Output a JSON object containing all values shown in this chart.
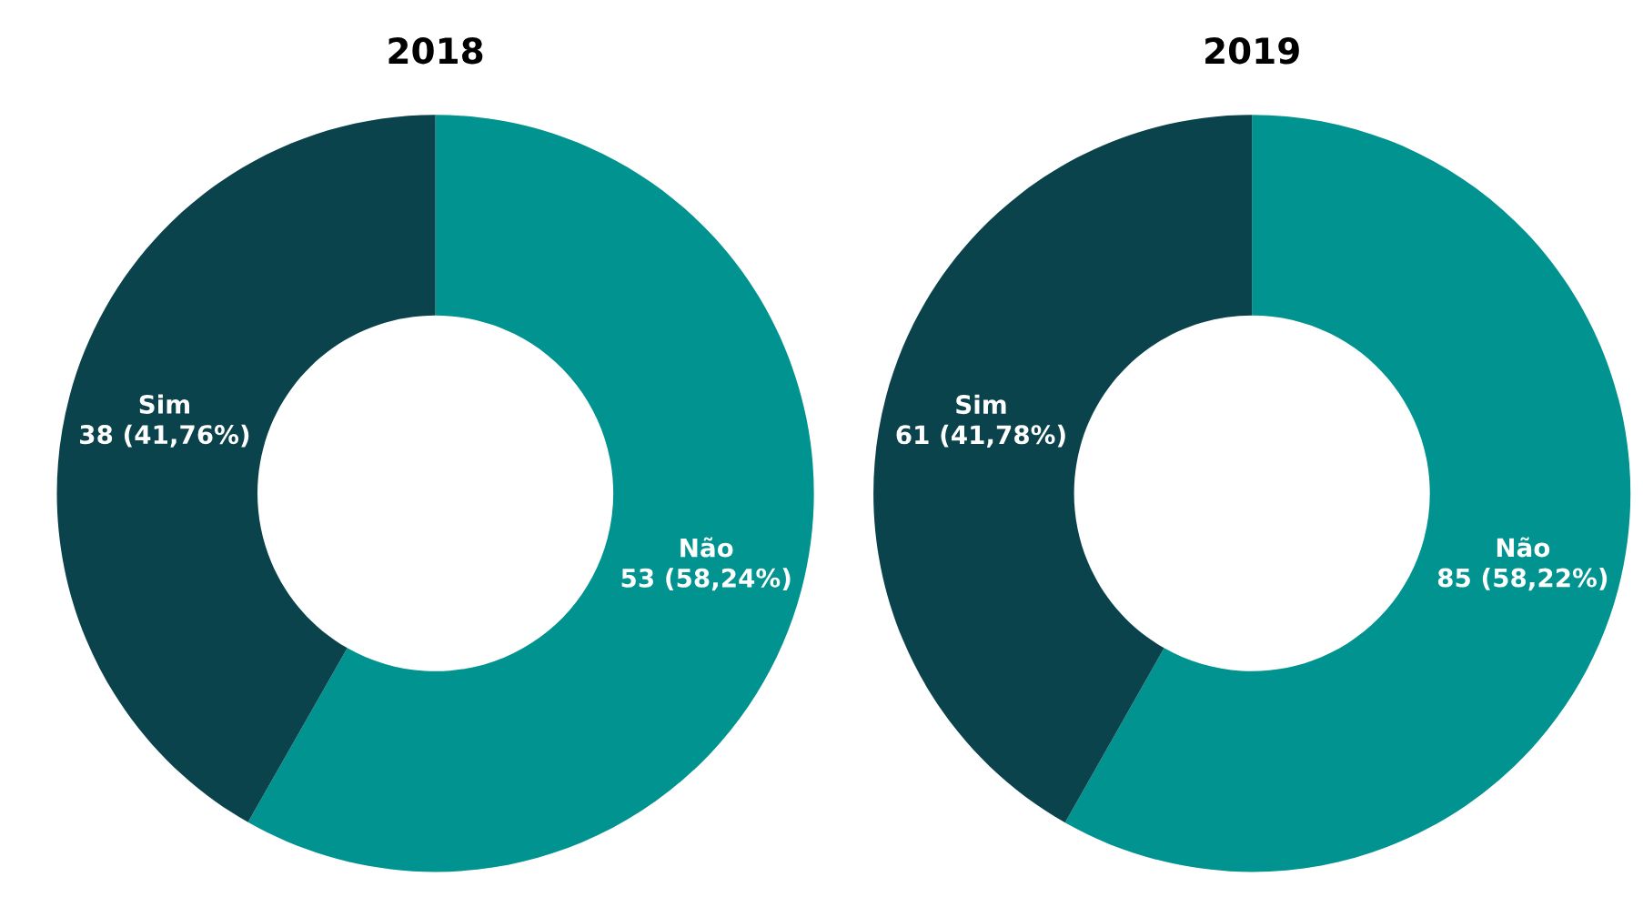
{
  "chart_data": [
    {
      "type": "donut",
      "title": "2018",
      "categories": [
        "Não",
        "Sim"
      ],
      "values": [
        53,
        38
      ],
      "colors": [
        "#00938f",
        "#0a434c"
      ],
      "value_labels": [
        "53 (58,24%)",
        "38 (41,76%)"
      ]
    },
    {
      "type": "donut",
      "title": "2019",
      "categories": [
        "Não",
        "Sim"
      ],
      "values": [
        85,
        61
      ],
      "colors": [
        "#00938f",
        "#0a434c"
      ],
      "value_labels": [
        "85 (58,22%)",
        "61 (41,78%)"
      ]
    }
  ]
}
